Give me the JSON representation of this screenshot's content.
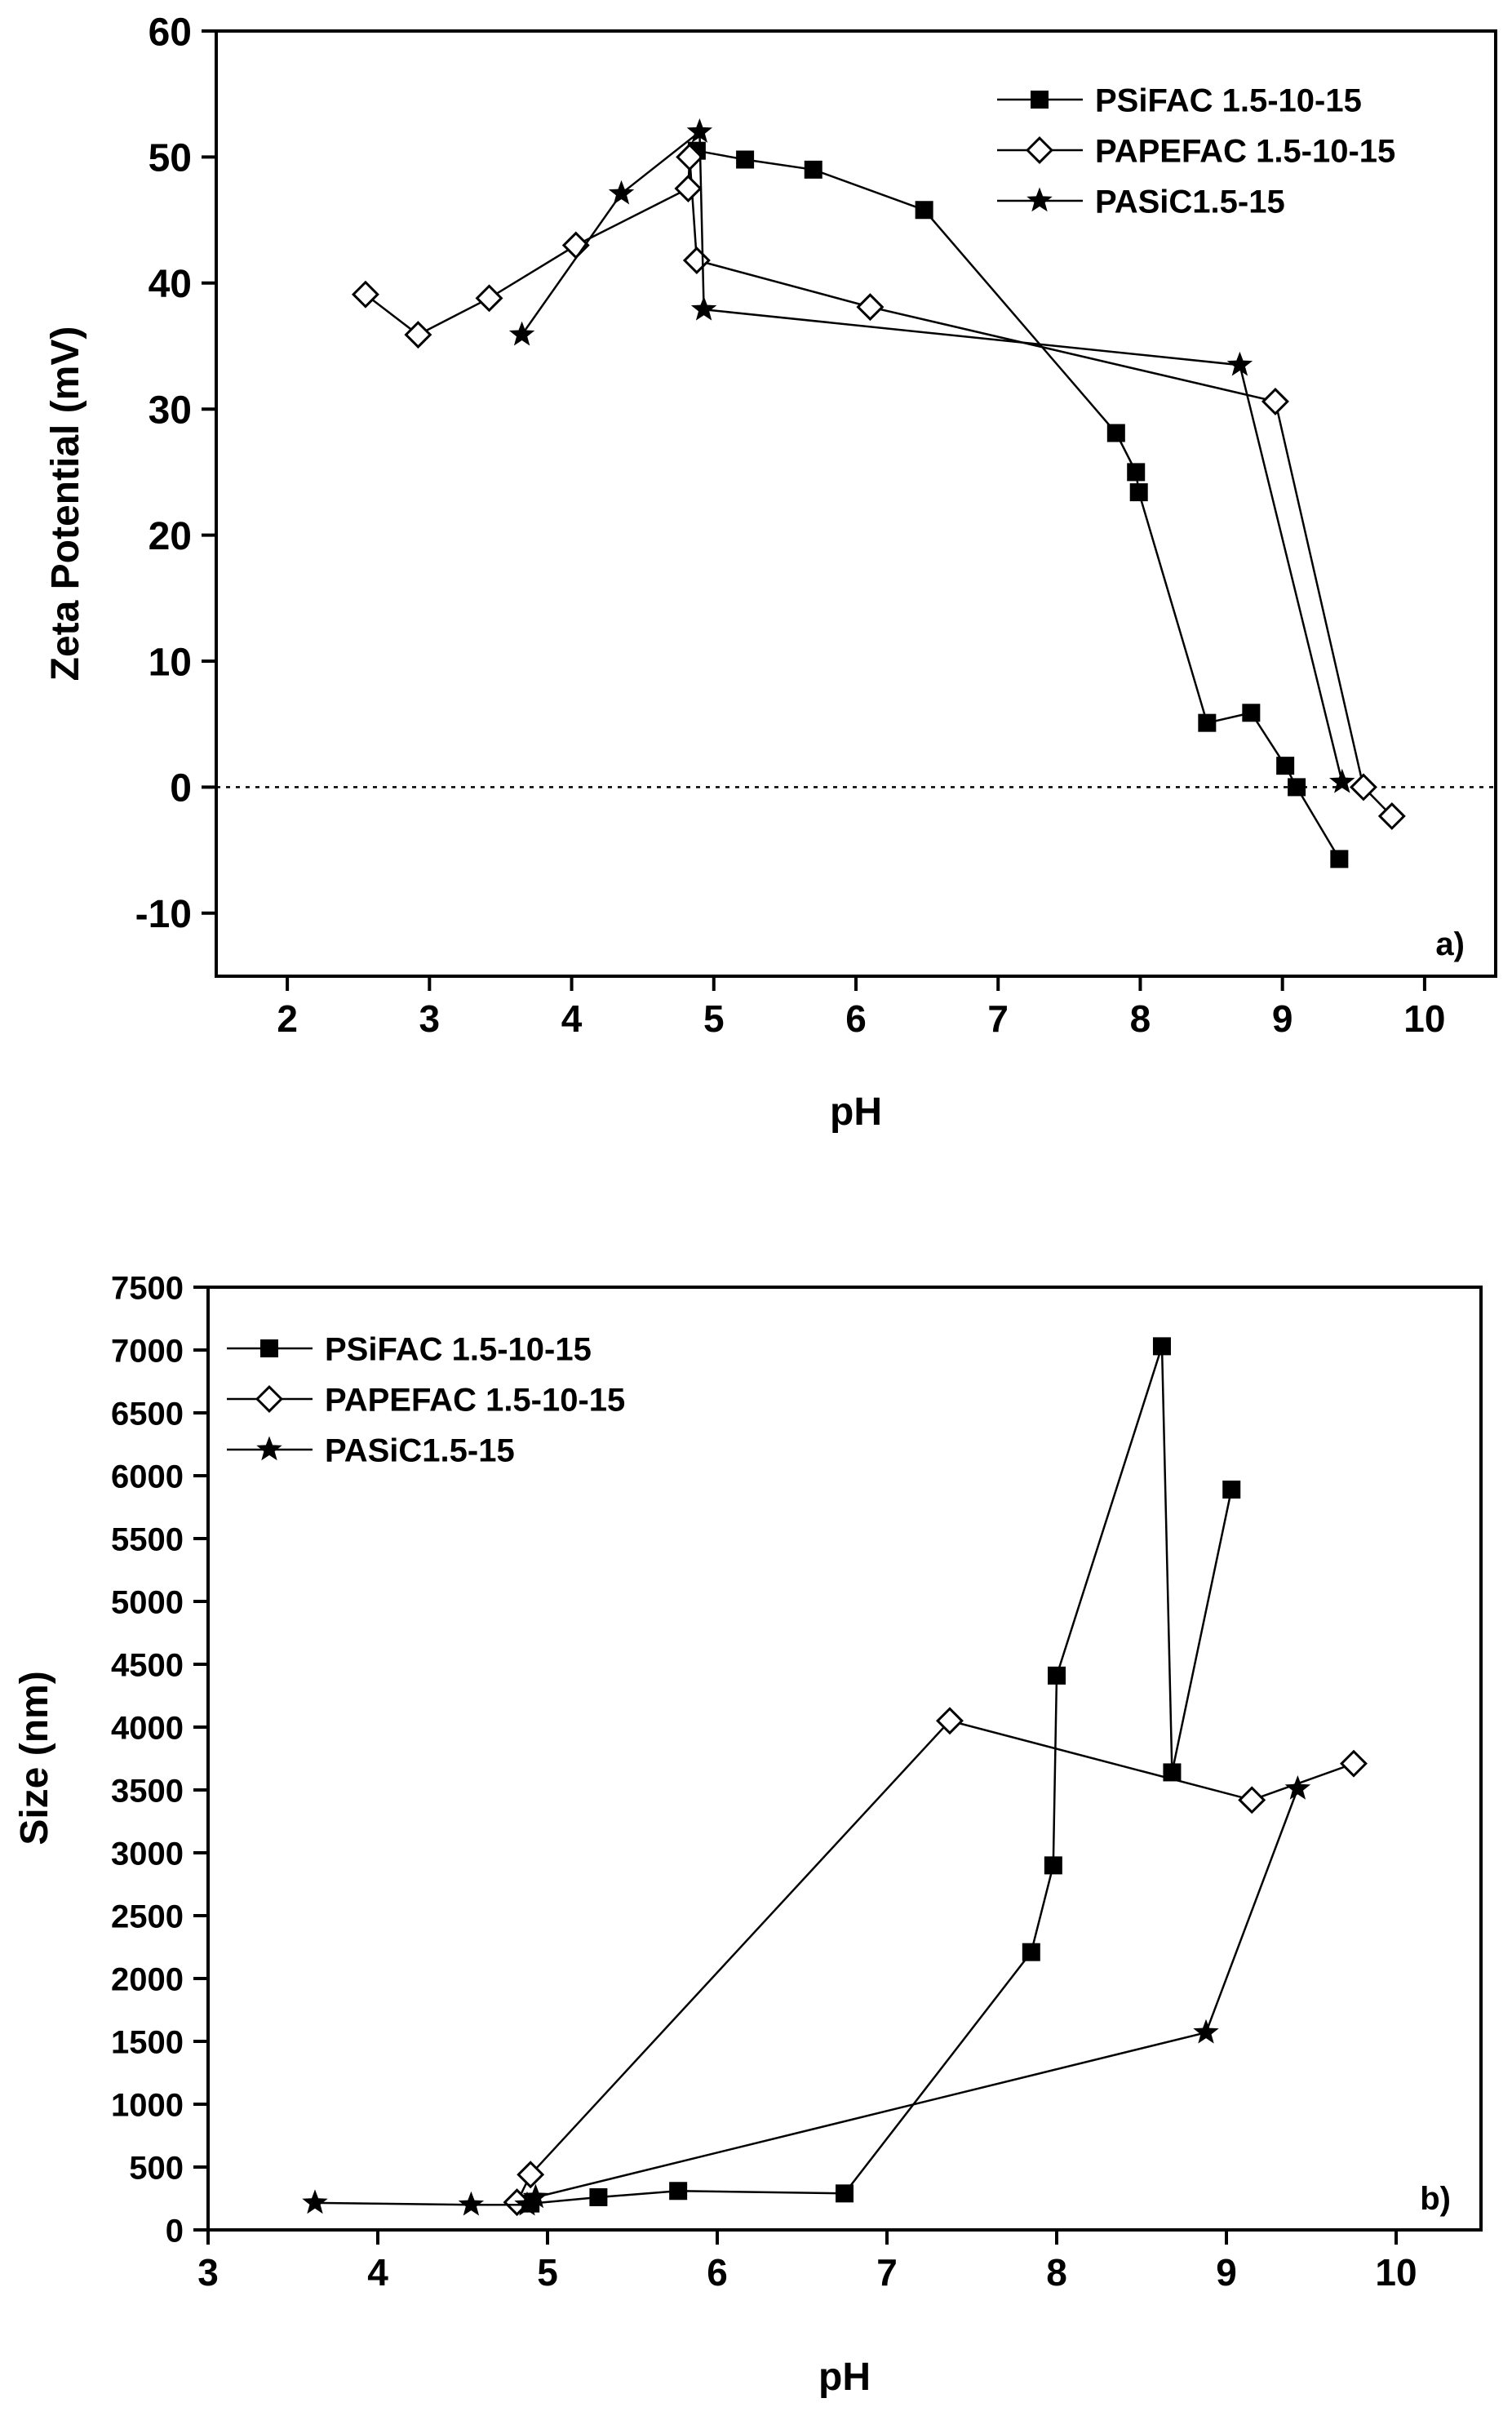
{
  "chart_data": [
    {
      "type": "line",
      "panel_label": "a)",
      "xlabel": "pH",
      "ylabel": "Zeta Potential (mV)",
      "xlim": [
        1.5,
        10.5
      ],
      "ylim": [
        -15,
        60
      ],
      "xticks": [
        2,
        3,
        4,
        5,
        6,
        7,
        8,
        9,
        10
      ],
      "yticks": [
        -10,
        0,
        10,
        20,
        30,
        40,
        50,
        60
      ],
      "reference_line": {
        "y": 0,
        "style": "dotted"
      },
      "legend_position": "top-right",
      "series": [
        {
          "name": "PSiFAC 1.5-10-15",
          "marker": "filled-square",
          "x": [
            4.88,
            5.22,
            5.7,
            6.48,
            7.83,
            7.97,
            7.99,
            8.47,
            8.78,
            9.02,
            9.1,
            9.4
          ],
          "y": [
            50.5,
            49.8,
            49.0,
            45.8,
            28.1,
            25.0,
            23.4,
            5.1,
            5.9,
            1.7,
            0.0,
            -5.7
          ]
        },
        {
          "name": "PAPEFAC 1.5-10-15",
          "marker": "open-diamond",
          "x": [
            2.55,
            2.92,
            3.42,
            4.03,
            4.82,
            4.83,
            4.88,
            6.1,
            8.95,
            9.57,
            9.77
          ],
          "y": [
            39.1,
            35.9,
            38.8,
            43.0,
            47.5,
            50.0,
            41.8,
            38.1,
            30.6,
            0.0,
            -2.3
          ]
        },
        {
          "name": "PASiC1.5-15",
          "marker": "filled-star",
          "x": [
            3.65,
            4.35,
            4.9,
            4.93,
            8.7,
            9.42
          ],
          "y": [
            35.9,
            47.1,
            52.0,
            37.9,
            33.5,
            0.4
          ]
        }
      ]
    },
    {
      "type": "line",
      "panel_label": "b)",
      "xlabel": "pH",
      "ylabel": "Size (nm)",
      "xlim": [
        3,
        10.5
      ],
      "ylim": [
        0,
        7500
      ],
      "xticks": [
        3,
        4,
        5,
        6,
        7,
        8,
        9,
        10
      ],
      "yticks": [
        0,
        500,
        1000,
        1500,
        2000,
        2500,
        3000,
        3500,
        4000,
        4500,
        5000,
        5500,
        6000,
        6500,
        7000,
        7500
      ],
      "legend_position": "top-left",
      "series": [
        {
          "name": "PSiFAC 1.5-10-15",
          "marker": "filled-square",
          "x": [
            4.9,
            5.3,
            5.77,
            6.75,
            7.85,
            7.98,
            8.0,
            8.62,
            8.68,
            9.03
          ],
          "y": [
            210,
            260,
            310,
            290,
            2210,
            2900,
            4410,
            7030,
            3640,
            5890
          ]
        },
        {
          "name": "PAPEFAC 1.5-10-15",
          "marker": "open-diamond",
          "x": [
            4.82,
            4.9,
            7.37,
            9.15,
            9.75
          ],
          "y": [
            220,
            440,
            4050,
            3420,
            3710
          ]
        },
        {
          "name": "PASiC1.5-15",
          "marker": "filled-star",
          "x": [
            3.63,
            4.55,
            4.88,
            4.93,
            8.88,
            9.42
          ],
          "y": [
            215,
            200,
            200,
            260,
            1570,
            3510
          ]
        }
      ]
    }
  ]
}
